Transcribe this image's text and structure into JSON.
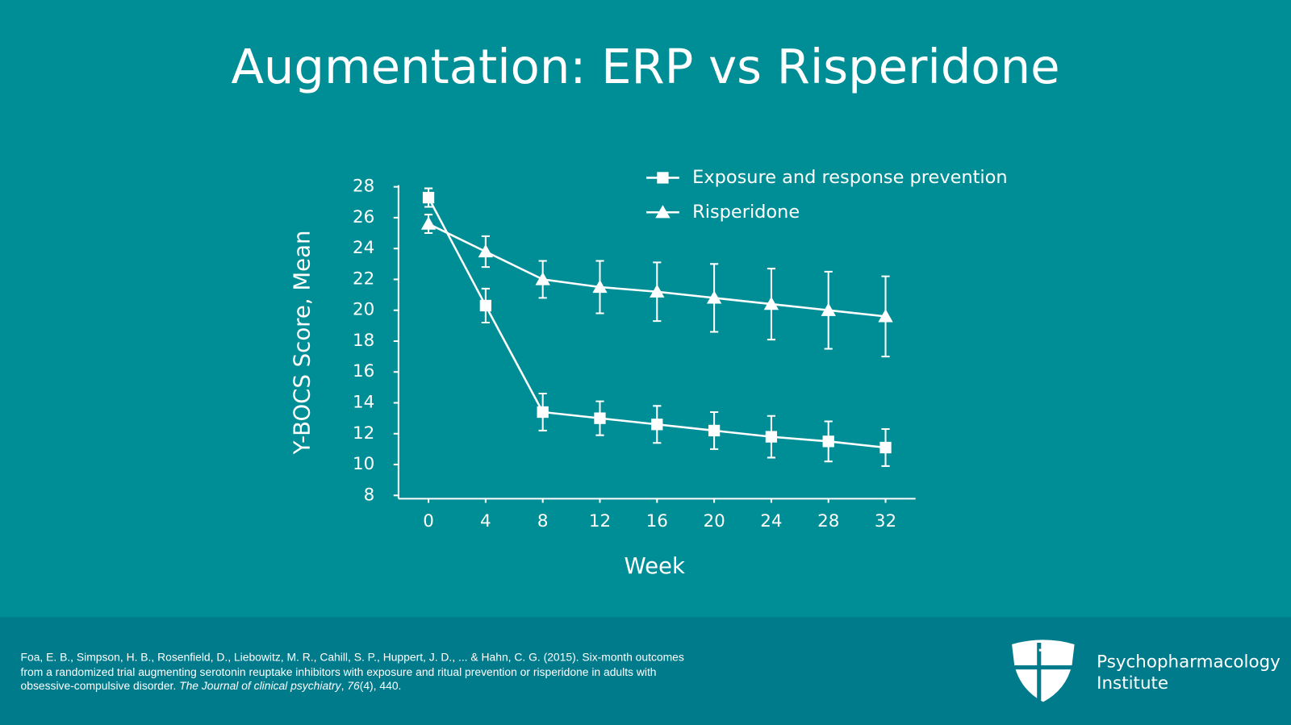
{
  "chart_data": {
    "type": "line",
    "title": "Augmentation: ERP vs Risperidone",
    "x_label": "Week",
    "y_label": "Y-BOCS Score, Mean",
    "x": [
      0,
      4,
      8,
      12,
      16,
      20,
      24,
      28,
      32
    ],
    "xlim": [
      -2.1,
      34.1
    ],
    "xticks": [
      0,
      4,
      8,
      12,
      16,
      20,
      24,
      28,
      32
    ],
    "ylim": [
      8,
      28
    ],
    "yticks": [
      8,
      10,
      12,
      14,
      16,
      18,
      20,
      22,
      24,
      26,
      28
    ],
    "legend": "upper right",
    "series": [
      {
        "name": "Exposure and response prevention",
        "color": "#ffffff",
        "marker": "square",
        "values": [
          27.3,
          20.3,
          13.4,
          13.0,
          12.6,
          12.2,
          11.8,
          11.5,
          11.1
        ],
        "errors": [
          0.6,
          1.1,
          1.2,
          1.1,
          1.2,
          1.2,
          1.35,
          1.3,
          1.2
        ]
      },
      {
        "name": "Risperidone",
        "color": "#ffffff",
        "marker": "triangle",
        "values": [
          25.6,
          23.8,
          22.0,
          21.5,
          21.2,
          20.8,
          20.4,
          20.0,
          19.6
        ],
        "errors": [
          0.6,
          1.0,
          1.2,
          1.7,
          1.9,
          2.2,
          2.3,
          2.5,
          2.6
        ]
      }
    ]
  },
  "footer": {
    "citation": [
      "Foa, E. B., Simpson, H. B., Rosenfield, D., Liebowitz, M. R., Cahill, S. P., Huppert, J. D., ... & Hahn, C. G. (2015). Six-month outcomes from a randomized trial augmenting serotonin reuptake inhibitors with exposure and ritual prevention or risperidone in adults with obsessive-compulsive disorder. ",
      "The Journal of clinical psychiatry",
      ", ",
      "76",
      "(4), 440."
    ],
    "logo": [
      "Psychopharmacology",
      "Institute"
    ]
  }
}
